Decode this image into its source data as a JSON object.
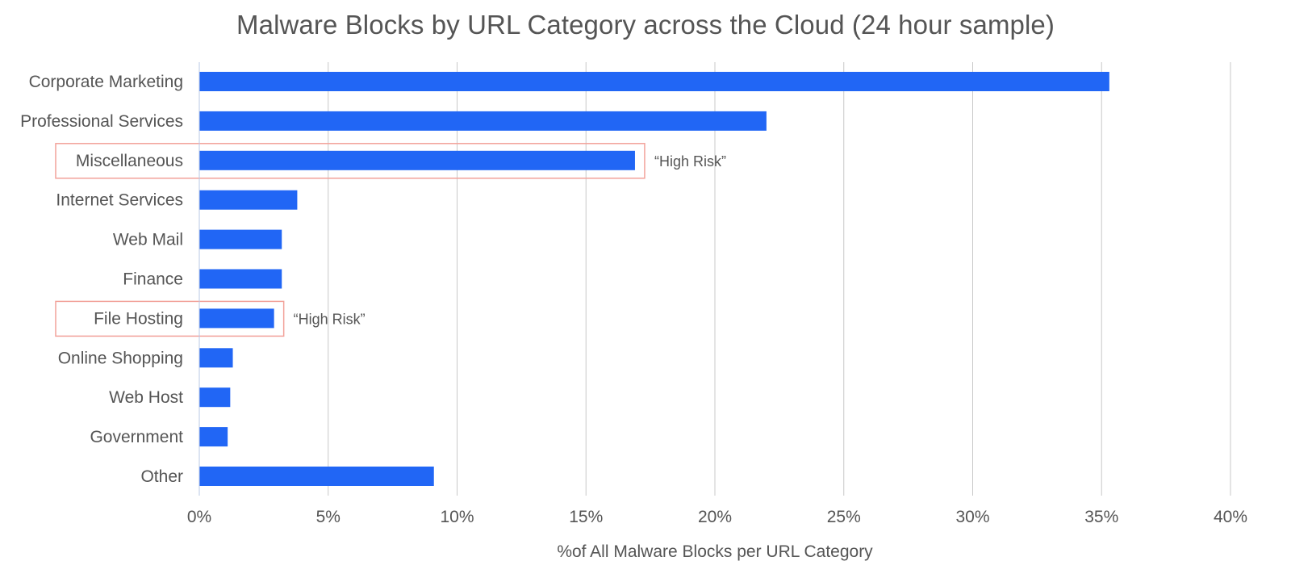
{
  "chart_data": {
    "type": "bar",
    "orientation": "horizontal",
    "title": "Malware Blocks by URL Category across the Cloud (24 hour sample)",
    "xlabel": "%of All Malware Blocks per URL Category",
    "ylabel": "",
    "categories": [
      "Corporate Marketing",
      "Professional Services",
      "Miscellaneous",
      "Internet Services",
      "Web Mail",
      "Finance",
      "File Hosting",
      "Online Shopping",
      "Web Host",
      "Government",
      "Other"
    ],
    "values": [
      35.3,
      22.0,
      16.9,
      3.8,
      3.2,
      3.2,
      2.9,
      1.3,
      1.2,
      1.1,
      9.1
    ],
    "xlim": [
      0,
      40
    ],
    "xticks": [
      0,
      5,
      10,
      15,
      20,
      25,
      30,
      35,
      40
    ],
    "xtick_labels": [
      "0%",
      "5%",
      "10%",
      "15%",
      "20%",
      "25%",
      "30%",
      "35%",
      "40%"
    ],
    "grid": "vertical",
    "bar_color": "#2166f5",
    "grid_color": "#c8c8c8",
    "annotations": [
      {
        "category": "Miscellaneous",
        "text": "“High Risk”",
        "box_color": "#f2a29a"
      },
      {
        "category": "File Hosting",
        "text": "“High Risk”",
        "box_color": "#f2a29a"
      }
    ]
  }
}
